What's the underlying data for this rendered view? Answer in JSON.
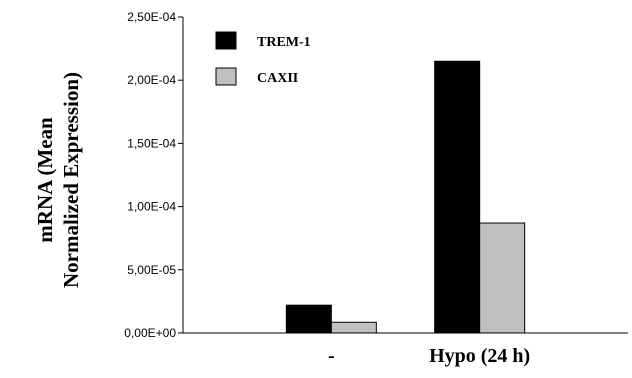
{
  "chart_data": {
    "type": "bar",
    "title": "",
    "xlabel": "",
    "ylabel_lines": [
      "mRNA (Mean",
      "Normalized Expression)"
    ],
    "categories": [
      "-",
      "Hypo (24 h)"
    ],
    "series": [
      {
        "name": "TREM-1",
        "color": "#000000",
        "values": [
          2.2e-05,
          0.000215
        ]
      },
      {
        "name": "CAXII",
        "color": "#c0c0c0",
        "values": [
          8.5e-06,
          8.7e-05
        ]
      }
    ],
    "ylim": [
      0,
      0.00025
    ],
    "yticks": [
      {
        "value": 0,
        "label": "0,00E+00"
      },
      {
        "value": 5e-05,
        "label": "5,00E-05"
      },
      {
        "value": 0.0001,
        "label": "1,00E-04"
      },
      {
        "value": 0.00015,
        "label": "1,50E-04"
      },
      {
        "value": 0.0002,
        "label": "2,00E-04"
      },
      {
        "value": 0.00025,
        "label": "2,50E-04"
      }
    ],
    "grid": false,
    "legend_position": "top-left"
  }
}
